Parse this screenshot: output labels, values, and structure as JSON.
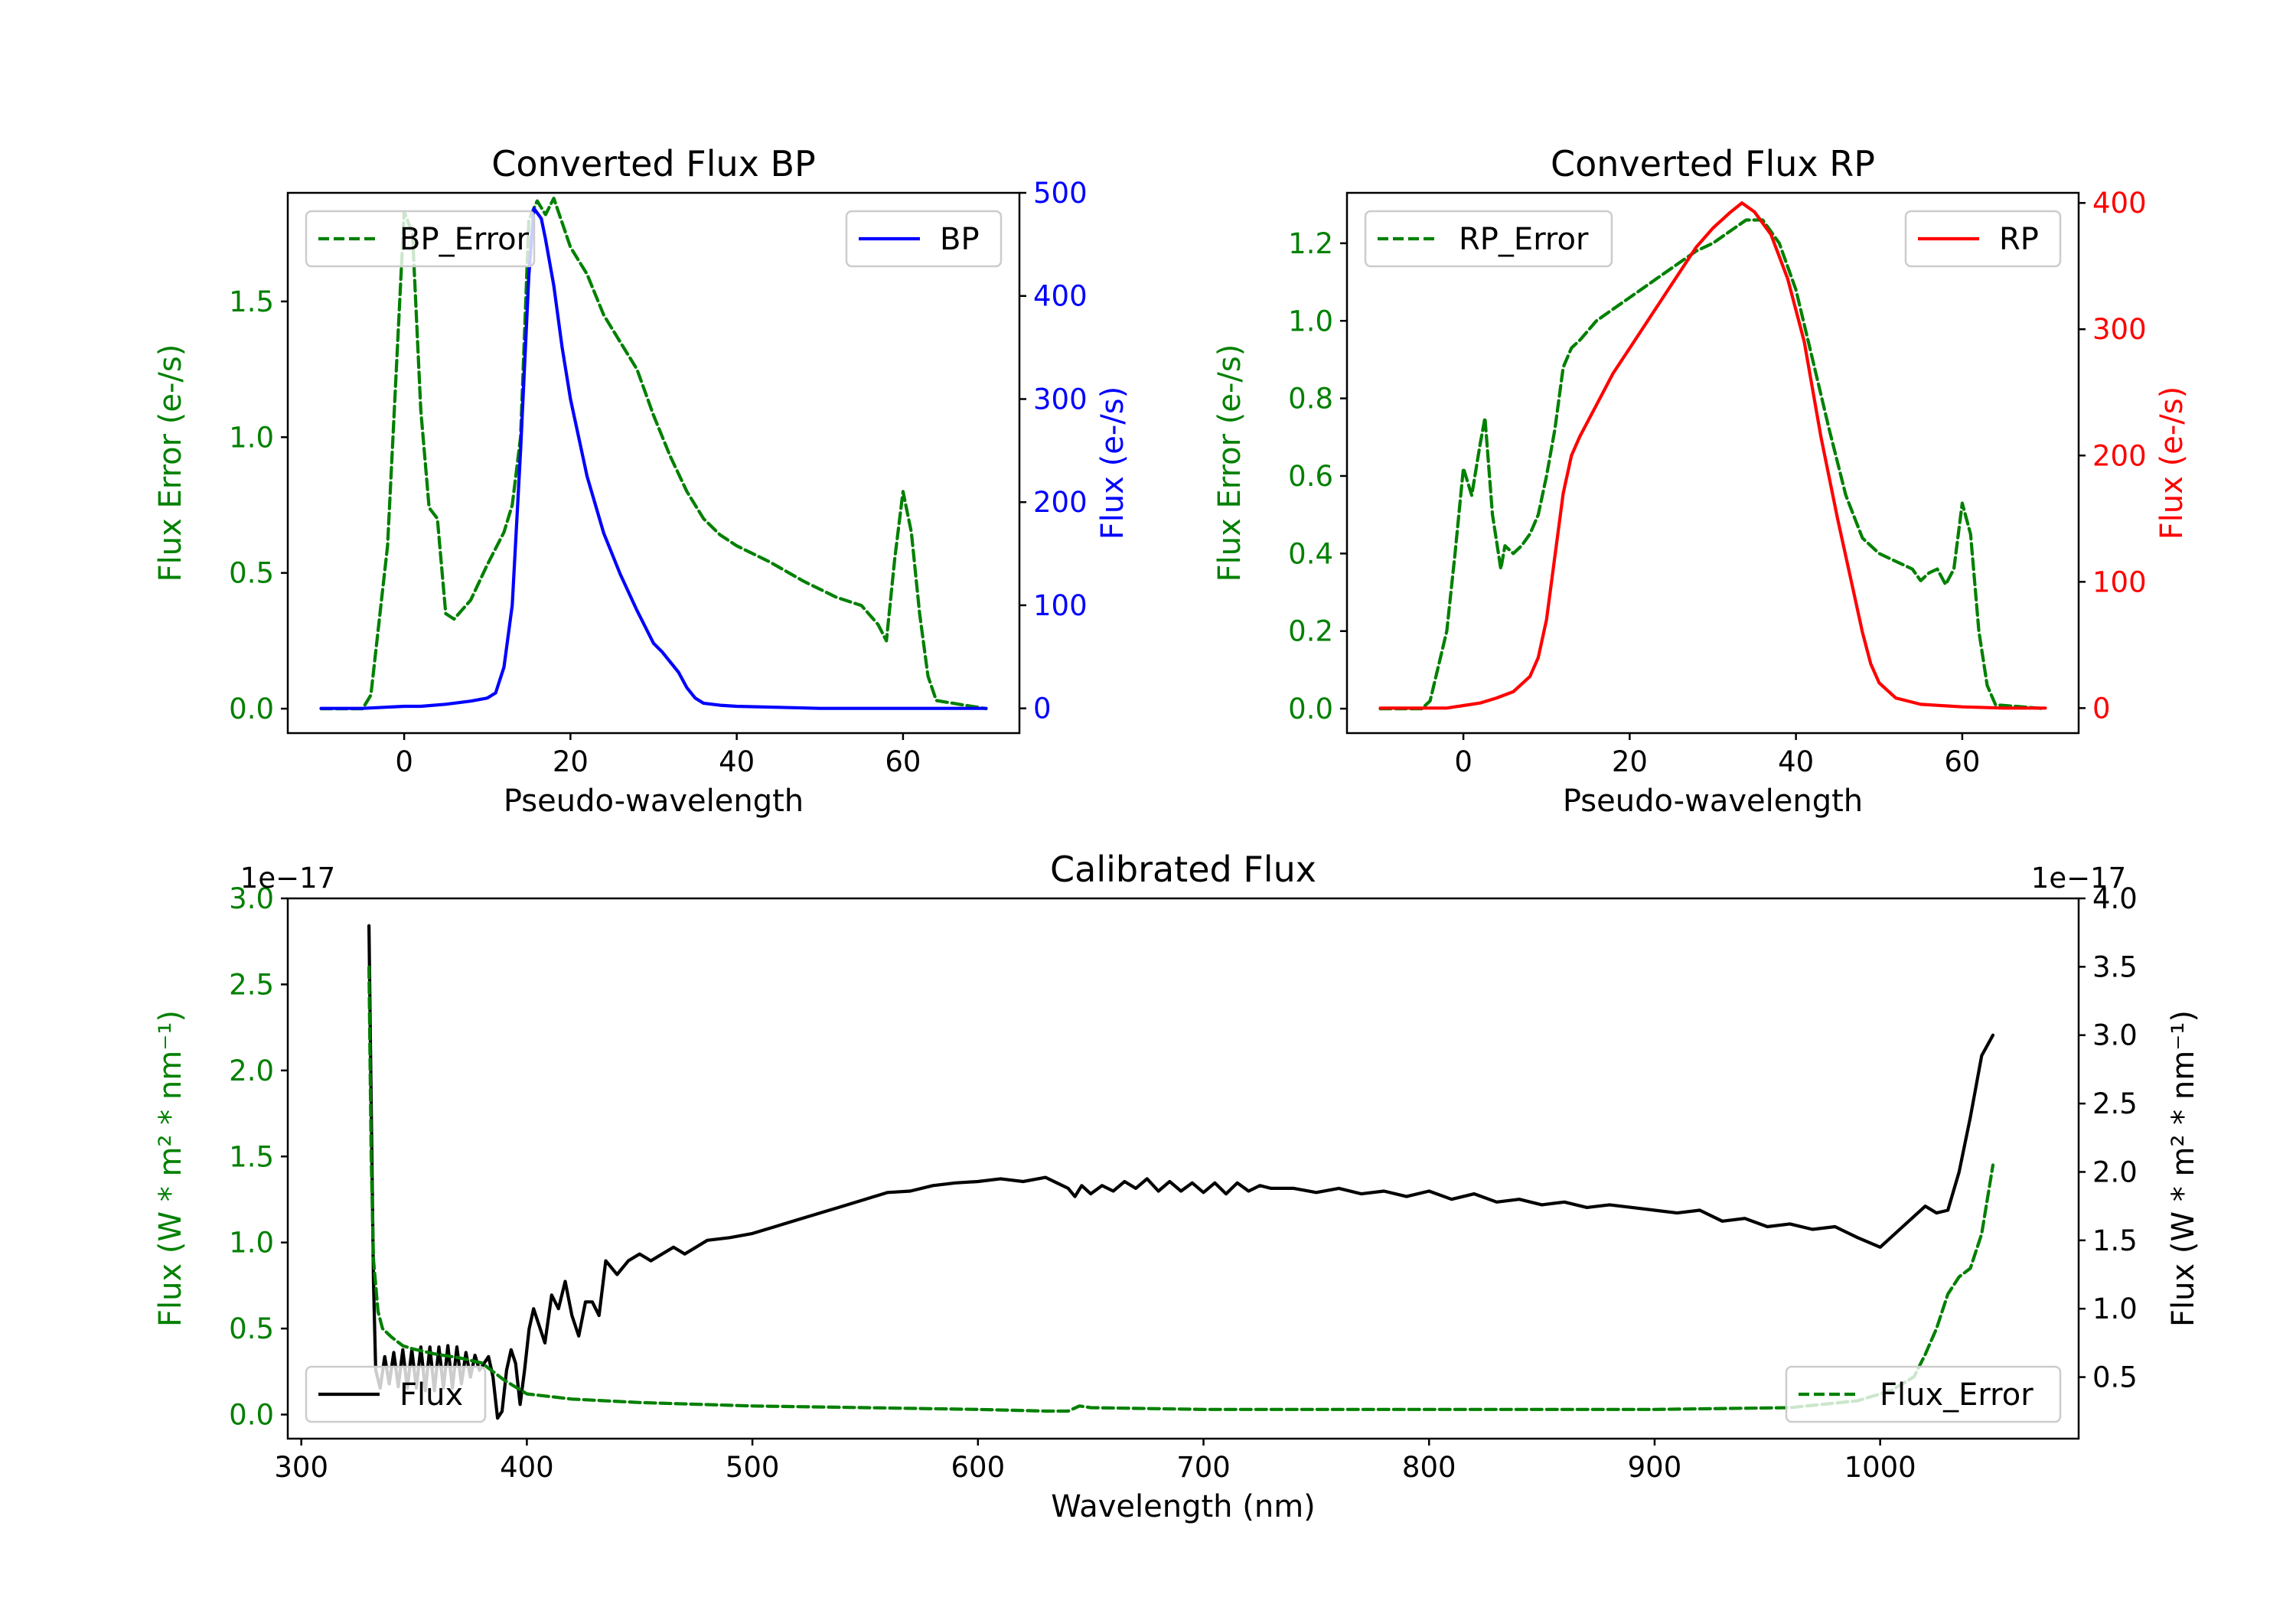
{
  "chart_data": [
    {
      "id": "bp",
      "type": "line",
      "title": "Converted Flux BP",
      "xlabel": "Pseudo-wavelength",
      "xlim": [
        -14,
        74
      ],
      "xticks": [
        0,
        20,
        40,
        60
      ],
      "left_axis": {
        "label": "Flux Error (e-/s)",
        "color": "#008000",
        "ylim": [
          -0.09,
          1.9
        ],
        "ticks": [
          0.0,
          0.5,
          1.0,
          1.5
        ],
        "tick_labels": [
          "0.0",
          "0.5",
          "1.0",
          "1.5"
        ]
      },
      "right_axis": {
        "label": "Flux (e-/s)",
        "color": "#0000ff",
        "ylim": [
          -24,
          500
        ],
        "ticks": [
          0,
          100,
          200,
          300,
          400,
          500
        ],
        "tick_labels": [
          "0",
          "100",
          "200",
          "300",
          "400",
          "500"
        ]
      },
      "series": [
        {
          "name": "BP_Error",
          "axis": "left",
          "color": "#008000",
          "style": "dashed",
          "x": [
            -10,
            -5,
            -4,
            -2,
            0,
            1,
            2,
            3,
            4,
            5,
            6,
            8,
            10,
            12,
            13,
            14,
            15,
            16,
            17,
            18,
            20,
            22,
            24,
            26,
            28,
            30,
            32,
            34,
            36,
            38,
            40,
            44,
            48,
            52,
            55,
            57,
            58,
            59,
            60,
            61,
            62,
            63,
            64,
            70
          ],
          "y": [
            0.0,
            0.0,
            0.05,
            0.6,
            1.83,
            1.75,
            1.1,
            0.74,
            0.7,
            0.35,
            0.33,
            0.4,
            0.53,
            0.65,
            0.75,
            1.0,
            1.8,
            1.87,
            1.82,
            1.88,
            1.7,
            1.6,
            1.45,
            1.35,
            1.25,
            1.08,
            0.93,
            0.8,
            0.7,
            0.64,
            0.6,
            0.54,
            0.47,
            0.41,
            0.38,
            0.31,
            0.25,
            0.55,
            0.8,
            0.65,
            0.35,
            0.12,
            0.03,
            0.0
          ]
        },
        {
          "name": "BP",
          "axis": "right",
          "color": "#0000ff",
          "style": "solid",
          "x": [
            -10,
            -5,
            0,
            2,
            5,
            8,
            10,
            11,
            12,
            13,
            14,
            15,
            15.6,
            16.5,
            17,
            18,
            19,
            20,
            22,
            24,
            26,
            28,
            30,
            31,
            32,
            33,
            34,
            35,
            36,
            38,
            40,
            45,
            50,
            55,
            60,
            65,
            70
          ],
          "y": [
            0,
            0,
            2,
            2,
            4,
            7,
            10,
            15,
            40,
            100,
            250,
            420,
            485,
            475,
            455,
            410,
            350,
            300,
            225,
            170,
            130,
            95,
            63,
            55,
            45,
            35,
            20,
            10,
            5,
            3,
            2,
            1,
            0,
            0,
            0,
            0,
            0
          ]
        }
      ],
      "legends": [
        {
          "entry": "BP_Error",
          "placement": "upper left"
        },
        {
          "entry": "BP",
          "placement": "upper right"
        }
      ]
    },
    {
      "id": "rp",
      "type": "line",
      "title": "Converted Flux RP",
      "xlabel": "Pseudo-wavelength",
      "xlim": [
        -14,
        74
      ],
      "xticks": [
        0,
        20,
        40,
        60
      ],
      "left_axis": {
        "label": "Flux Error (e-/s)",
        "color": "#008000",
        "ylim": [
          -0.063,
          1.33
        ],
        "ticks": [
          0.0,
          0.2,
          0.4,
          0.6,
          0.8,
          1.0,
          1.2
        ],
        "tick_labels": [
          "0.0",
          "0.2",
          "0.4",
          "0.6",
          "0.8",
          "1.0",
          "1.2"
        ]
      },
      "right_axis": {
        "label": "Flux (e-/s)",
        "color": "#ff0000",
        "ylim": [
          -19.8,
          408
        ],
        "ticks": [
          0,
          100,
          200,
          300,
          400
        ],
        "tick_labels": [
          "0",
          "100",
          "200",
          "300",
          "400"
        ]
      },
      "series": [
        {
          "name": "RP_Error",
          "axis": "left",
          "color": "#008000",
          "style": "dashed",
          "x": [
            -10,
            -5,
            -4,
            -2,
            -1,
            0,
            1,
            2,
            2.6,
            3.5,
            4.5,
            5,
            6,
            7,
            8,
            9,
            10,
            11,
            12,
            13,
            14,
            16,
            18,
            20,
            22,
            24,
            26,
            28,
            30,
            32,
            34,
            36,
            38,
            40,
            42,
            44,
            46,
            48,
            50,
            52,
            54,
            55,
            56,
            57,
            58,
            59,
            60,
            61,
            62,
            63,
            64,
            70
          ],
          "y": [
            0.0,
            0.0,
            0.02,
            0.2,
            0.4,
            0.62,
            0.55,
            0.68,
            0.75,
            0.5,
            0.36,
            0.42,
            0.4,
            0.42,
            0.45,
            0.5,
            0.6,
            0.72,
            0.88,
            0.93,
            0.95,
            1.0,
            1.03,
            1.06,
            1.09,
            1.12,
            1.15,
            1.18,
            1.2,
            1.23,
            1.26,
            1.26,
            1.2,
            1.08,
            0.9,
            0.72,
            0.55,
            0.44,
            0.4,
            0.38,
            0.36,
            0.33,
            0.35,
            0.36,
            0.32,
            0.36,
            0.53,
            0.45,
            0.2,
            0.06,
            0.01,
            0.0
          ]
        },
        {
          "name": "RP",
          "axis": "right",
          "color": "#ff0000",
          "style": "solid",
          "x": [
            -10,
            -2,
            0,
            2,
            4,
            6,
            8,
            9,
            10,
            11,
            12,
            13,
            14,
            16,
            18,
            20,
            22,
            24,
            26,
            28,
            30,
            32,
            33.5,
            35,
            37,
            39,
            41,
            43,
            45,
            47,
            48,
            49,
            50,
            52,
            55,
            60,
            65,
            70
          ],
          "y": [
            0,
            0,
            2,
            4,
            8,
            13,
            25,
            40,
            70,
            120,
            170,
            200,
            215,
            240,
            265,
            285,
            305,
            325,
            345,
            365,
            380,
            392,
            400,
            393,
            375,
            340,
            290,
            215,
            150,
            90,
            60,
            35,
            20,
            8,
            3,
            1,
            0,
            0
          ]
        }
      ],
      "legends": [
        {
          "entry": "RP_Error",
          "placement": "upper left"
        },
        {
          "entry": "RP",
          "placement": "upper right"
        }
      ]
    },
    {
      "id": "cal",
      "type": "line",
      "title": "Calibrated Flux",
      "xlabel": "Wavelength (nm)",
      "xlim": [
        294,
        1088
      ],
      "xticks": [
        300,
        400,
        500,
        600,
        700,
        800,
        900,
        1000
      ],
      "left_axis": {
        "label": "Flux (W * m² * nm⁻¹)",
        "color": "#008000",
        "exponent": "1e−17",
        "ylim": [
          -0.14,
          3.0
        ],
        "ticks": [
          0.0,
          0.5,
          1.0,
          1.5,
          2.0,
          2.5,
          3.0
        ],
        "tick_labels": [
          "0.0",
          "0.5",
          "1.0",
          "1.5",
          "2.0",
          "2.5",
          "3.0"
        ]
      },
      "right_axis": {
        "label": "Flux (W * m² * nm⁻¹)",
        "color": "#000000",
        "exponent": "1e−17",
        "ylim": [
          0.05,
          4.0
        ],
        "ticks": [
          0.5,
          1.0,
          1.5,
          2.0,
          2.5,
          3.0,
          3.5,
          4.0
        ],
        "tick_labels": [
          "0.5",
          "1.0",
          "1.5",
          "2.0",
          "2.5",
          "3.0",
          "3.5",
          "4.0"
        ]
      },
      "series": [
        {
          "name": "Flux",
          "axis": "right",
          "color": "#000000",
          "style": "solid",
          "x": [
            330,
            331,
            332,
            333,
            335,
            337,
            339,
            341,
            343,
            345,
            347,
            349,
            351,
            353,
            355,
            357,
            359,
            361,
            363,
            365,
            367,
            369,
            371,
            373,
            375,
            377,
            379,
            381,
            383,
            385,
            387,
            389,
            391,
            393,
            395,
            397,
            399,
            401,
            403,
            405,
            408,
            411,
            414,
            417,
            420,
            423,
            426,
            429,
            432,
            435,
            440,
            445,
            450,
            455,
            460,
            465,
            470,
            475,
            480,
            490,
            500,
            510,
            520,
            530,
            540,
            550,
            560,
            570,
            580,
            590,
            600,
            610,
            620,
            630,
            635,
            640,
            643,
            646,
            650,
            655,
            660,
            665,
            670,
            675,
            680,
            685,
            690,
            695,
            700,
            705,
            710,
            715,
            720,
            725,
            730,
            740,
            750,
            760,
            770,
            780,
            790,
            800,
            810,
            820,
            830,
            840,
            850,
            860,
            870,
            880,
            890,
            900,
            910,
            920,
            930,
            940,
            950,
            960,
            970,
            980,
            990,
            1000,
            1010,
            1020,
            1025,
            1030,
            1035,
            1040,
            1045,
            1050
          ],
          "y": [
            3.8,
            2.5,
            1.2,
            0.55,
            0.42,
            0.65,
            0.45,
            0.68,
            0.43,
            0.7,
            0.42,
            0.7,
            0.42,
            0.72,
            0.4,
            0.72,
            0.4,
            0.72,
            0.42,
            0.73,
            0.42,
            0.72,
            0.45,
            0.68,
            0.5,
            0.66,
            0.55,
            0.6,
            0.65,
            0.5,
            0.2,
            0.25,
            0.55,
            0.7,
            0.6,
            0.3,
            0.55,
            0.85,
            1.0,
            0.9,
            0.75,
            1.1,
            1.0,
            1.2,
            0.95,
            0.8,
            1.05,
            1.05,
            0.95,
            1.35,
            1.25,
            1.35,
            1.4,
            1.35,
            1.4,
            1.45,
            1.4,
            1.45,
            1.5,
            1.52,
            1.55,
            1.6,
            1.65,
            1.7,
            1.75,
            1.8,
            1.85,
            1.86,
            1.9,
            1.92,
            1.93,
            1.95,
            1.93,
            1.96,
            1.92,
            1.88,
            1.82,
            1.9,
            1.84,
            1.9,
            1.86,
            1.93,
            1.88,
            1.95,
            1.86,
            1.93,
            1.86,
            1.92,
            1.85,
            1.92,
            1.84,
            1.92,
            1.86,
            1.9,
            1.88,
            1.88,
            1.85,
            1.88,
            1.84,
            1.86,
            1.82,
            1.86,
            1.8,
            1.84,
            1.78,
            1.8,
            1.76,
            1.78,
            1.74,
            1.76,
            1.74,
            1.72,
            1.7,
            1.72,
            1.64,
            1.66,
            1.6,
            1.62,
            1.58,
            1.6,
            1.52,
            1.45,
            1.6,
            1.75,
            1.7,
            1.72,
            2.0,
            2.4,
            2.85,
            3.0
          ]
        },
        {
          "name": "Flux_Error",
          "axis": "left",
          "color": "#008000",
          "style": "dashed",
          "x": [
            330,
            331,
            332,
            334,
            336,
            340,
            345,
            350,
            360,
            370,
            380,
            390,
            400,
            420,
            450,
            500,
            550,
            600,
            630,
            640,
            645,
            650,
            700,
            800,
            900,
            960,
            990,
            1005,
            1015,
            1020,
            1025,
            1030,
            1035,
            1040,
            1045,
            1050
          ],
          "y": [
            2.6,
            1.5,
            0.9,
            0.6,
            0.5,
            0.45,
            0.4,
            0.38,
            0.35,
            0.33,
            0.3,
            0.2,
            0.12,
            0.09,
            0.07,
            0.05,
            0.04,
            0.03,
            0.02,
            0.02,
            0.05,
            0.04,
            0.03,
            0.03,
            0.03,
            0.04,
            0.08,
            0.14,
            0.22,
            0.35,
            0.5,
            0.7,
            0.8,
            0.85,
            1.05,
            1.45
          ]
        }
      ],
      "legends": [
        {
          "entry": "Flux",
          "placement": "lower left"
        },
        {
          "entry": "Flux_Error",
          "placement": "lower right"
        }
      ]
    }
  ]
}
